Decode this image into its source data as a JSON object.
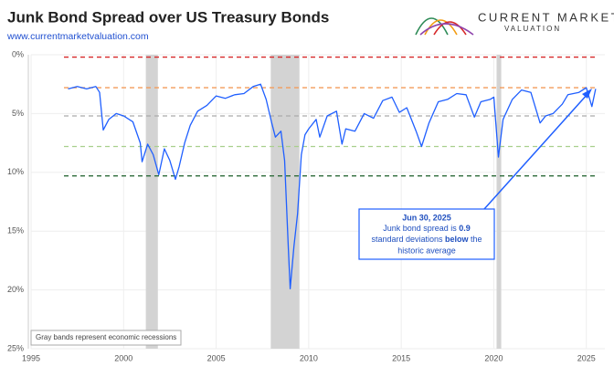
{
  "chart_data": {
    "type": "line",
    "title": "Junk Bond Spread over US Treasury Bonds",
    "subtitle": "www.currentmarketvaluation.com",
    "logo": {
      "line1": "CURRENT MARKET",
      "line2": "VALUATION"
    },
    "note": "Gray bands represent economic recessions",
    "annotation": {
      "title": "Jun 30, 2025",
      "line1": [
        "Junk bond spread is ",
        "0.9"
      ],
      "line2": [
        "standard deviations ",
        "below",
        " the"
      ],
      "line3": "historic average"
    },
    "color": "#1f5fff",
    "x": [
      1997.0,
      1997.5,
      1998.0,
      1998.5,
      1998.7,
      1998.9,
      1999.2,
      1999.6,
      2000.0,
      2000.5,
      2000.9,
      2001.0,
      2001.3,
      2001.6,
      2001.9,
      2002.2,
      2002.5,
      2002.8,
      2003.0,
      2003.3,
      2003.6,
      2004.0,
      2004.5,
      2005.0,
      2005.5,
      2006.0,
      2006.5,
      2007.0,
      2007.4,
      2007.7,
      2008.0,
      2008.2,
      2008.5,
      2008.7,
      2008.9,
      2009.0,
      2009.2,
      2009.4,
      2009.6,
      2009.8,
      2010.0,
      2010.4,
      2010.6,
      2011.0,
      2011.5,
      2011.8,
      2012.0,
      2012.5,
      2013.0,
      2013.5,
      2014.0,
      2014.5,
      2014.9,
      2015.3,
      2015.8,
      2016.1,
      2016.5,
      2017.0,
      2017.5,
      2018.0,
      2018.5,
      2018.95,
      2019.3,
      2019.8,
      2020.0,
      2020.25,
      2020.5,
      2021.0,
      2021.5,
      2022.0,
      2022.5,
      2022.8,
      2023.2,
      2023.7,
      2024.0,
      2024.6,
      2025.0,
      2025.3,
      2025.5
    ],
    "values": [
      2.9,
      2.7,
      2.9,
      2.7,
      3.2,
      6.4,
      5.5,
      5.0,
      5.2,
      5.7,
      7.5,
      9.1,
      7.6,
      8.5,
      10.2,
      8.0,
      9.0,
      10.6,
      9.5,
      7.5,
      6.0,
      4.8,
      4.3,
      3.5,
      3.7,
      3.4,
      3.3,
      2.7,
      2.5,
      3.8,
      5.8,
      7.0,
      6.5,
      9.0,
      16.5,
      19.9,
      16.3,
      13.5,
      8.5,
      6.8,
      6.3,
      5.5,
      7.0,
      5.2,
      4.8,
      7.6,
      6.3,
      6.5,
      5.0,
      5.4,
      3.9,
      3.6,
      4.9,
      4.5,
      6.5,
      7.8,
      5.8,
      4.0,
      3.8,
      3.3,
      3.4,
      5.3,
      4.0,
      3.8,
      3.6,
      8.7,
      5.5,
      3.8,
      3.0,
      3.2,
      5.8,
      5.2,
      5.0,
      4.2,
      3.4,
      3.2,
      2.8,
      4.4,
      2.9
    ],
    "xlim": [
      1995,
      2026
    ],
    "xticks": [
      1995,
      2000,
      2005,
      2010,
      2015,
      2020,
      2025
    ],
    "ylim": [
      0,
      25
    ],
    "y_inverted": true,
    "yticks": [
      {
        "value": 0,
        "label": "0%"
      },
      {
        "value": 5,
        "label": "5%"
      },
      {
        "value": 10,
        "label": "10%"
      },
      {
        "value": 15,
        "label": "15%"
      },
      {
        "value": 20,
        "label": "20%"
      },
      {
        "value": 25,
        "label": "25%"
      }
    ],
    "grid": true,
    "recessions": [
      [
        2001.2,
        2001.85
      ],
      [
        2007.95,
        2009.5
      ],
      [
        2020.15,
        2020.4
      ]
    ],
    "recession_color": "#d3d3d3",
    "reference_lines": [
      {
        "value": 0.2,
        "color": "#d62728"
      },
      {
        "value": 2.8,
        "color": "#f39c5a"
      },
      {
        "value": 5.2,
        "color": "#aaaaaa"
      },
      {
        "value": 7.8,
        "color": "#a8d08d"
      },
      {
        "value": 10.3,
        "color": "#2e6b3a"
      }
    ]
  }
}
